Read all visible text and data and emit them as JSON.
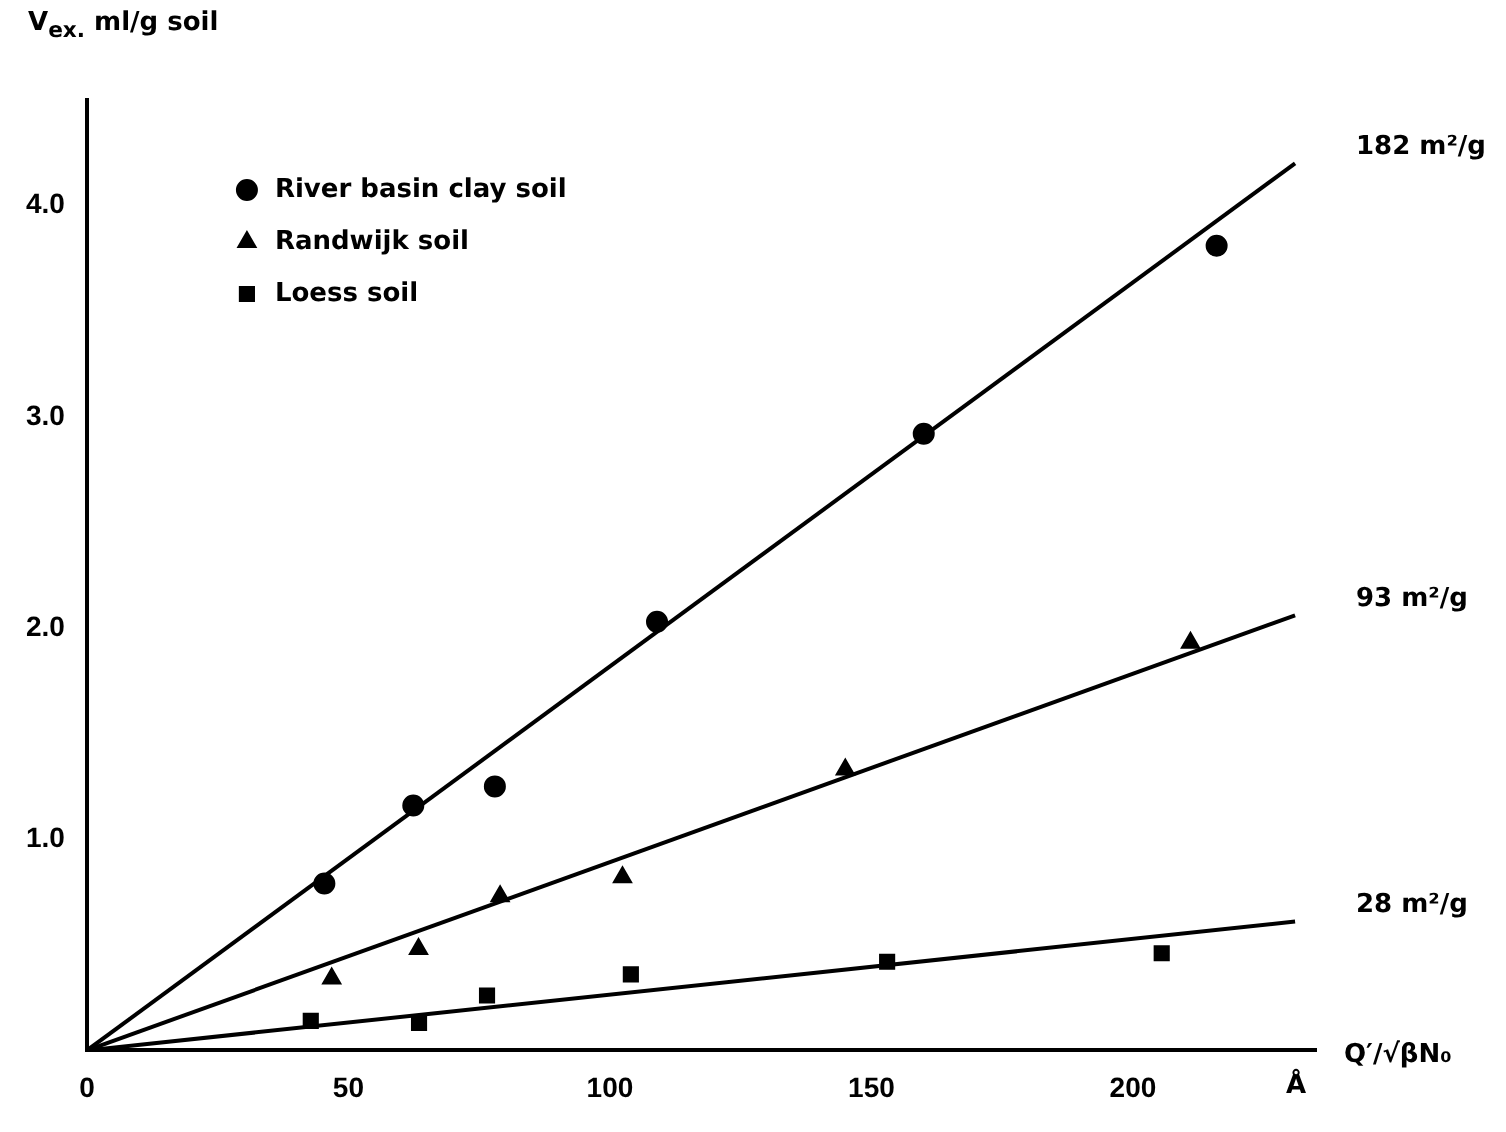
{
  "chart_data": {
    "type": "scatter",
    "ylabel": "V$_{ex.}$ ml/g soil",
    "xlabel": "Q′/√βN₀",
    "annotations": [
      "Å"
    ],
    "xlim": [
      0,
      235
    ],
    "ylim": [
      0,
      4.5
    ],
    "xticks": [
      0,
      50,
      100,
      150,
      200
    ],
    "yticks": [
      {
        "value": 1,
        "label": "1.0"
      },
      {
        "value": 2,
        "label": "2.0"
      },
      {
        "value": 3,
        "label": "3.0"
      },
      {
        "value": 4,
        "label": "4.0"
      }
    ],
    "grid": false,
    "legend": "top left",
    "series": [
      {
        "name": "River basin clay soil",
        "color": "#000000",
        "marker": "circle",
        "x": [
          45.4,
          62.4,
          78,
          109,
          160,
          216
        ],
        "values": [
          0.79,
          1.16,
          1.25,
          2.03,
          2.92,
          3.81
        ]
      },
      {
        "name": "Randwijk soil",
        "color": "#000000",
        "marker": "triangle",
        "x": [
          46.8,
          63.4,
          79,
          102.4,
          145,
          211
        ],
        "values": [
          0.34,
          0.48,
          0.73,
          0.82,
          1.33,
          1.93
        ]
      },
      {
        "name": "Loess soil",
        "color": "#000000",
        "marker": "square",
        "x": [
          42.8,
          63.5,
          76.5,
          104,
          153,
          205.5
        ],
        "values": [
          0.14,
          0.13,
          0.26,
          0.36,
          0.42,
          0.46
        ]
      },
      {
        "name": "182 m²/g",
        "type": "line",
        "color": "#000000",
        "marker": "none",
        "x": [
          0,
          231
        ],
        "values": [
          0,
          4.2
        ]
      },
      {
        "name": "93 m²/g",
        "type": "line",
        "color": "#000000",
        "marker": "none",
        "x": [
          0,
          231
        ],
        "values": [
          0,
          2.06
        ]
      },
      {
        "name": "28 m²/g",
        "type": "line",
        "color": "#000000",
        "marker": "none",
        "x": [
          0,
          231
        ],
        "values": [
          0,
          0.61
        ]
      }
    ]
  }
}
